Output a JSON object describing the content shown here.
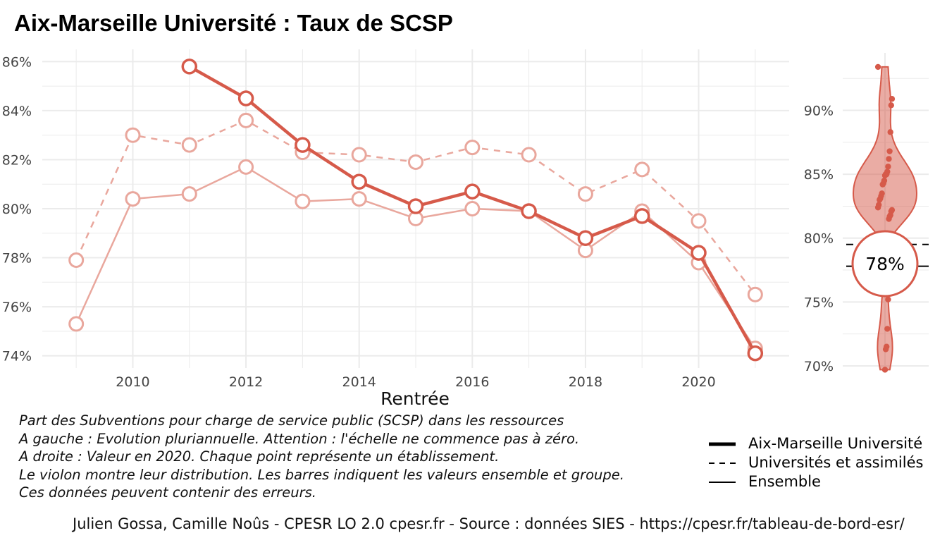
{
  "title": "Aix-Marseille Université  :  Taux de SCSP",
  "chart_data": [
    {
      "type": "line",
      "xlabel": "Rentrée",
      "ylabel": "",
      "x": [
        2009,
        2010,
        2011,
        2012,
        2013,
        2014,
        2015,
        2016,
        2017,
        2018,
        2019,
        2020,
        2021
      ],
      "xticks": [
        2010,
        2012,
        2014,
        2016,
        2018,
        2020
      ],
      "xlim": [
        2008.4,
        2021.6
      ],
      "ylim": [
        73.5,
        86.5
      ],
      "yticks": [
        74,
        76,
        78,
        80,
        82,
        84,
        86
      ],
      "ytick_labels": [
        "74%",
        "76%",
        "78%",
        "80%",
        "82%",
        "84%",
        "86%"
      ],
      "series": [
        {
          "name": "Aix-Marseille Université",
          "style": "solid-thick",
          "values": [
            null,
            null,
            85.8,
            84.5,
            82.6,
            81.1,
            80.1,
            80.7,
            79.9,
            78.8,
            79.7,
            78.2,
            74.1
          ]
        },
        {
          "name": "Universités et assimilés",
          "style": "dashed",
          "values": [
            77.9,
            83.0,
            82.6,
            83.6,
            82.3,
            82.2,
            81.9,
            82.5,
            82.2,
            80.6,
            81.6,
            79.5,
            76.5
          ]
        },
        {
          "name": "Ensemble",
          "style": "solid-thin",
          "values": [
            75.3,
            80.4,
            80.6,
            81.7,
            80.3,
            80.4,
            79.6,
            80.0,
            79.9,
            78.3,
            79.9,
            77.8,
            74.3
          ]
        }
      ],
      "grid": true
    },
    {
      "type": "violin",
      "ylim": [
        69.5,
        94.5
      ],
      "yticks": [
        70,
        75,
        80,
        85,
        90
      ],
      "ytick_labels": [
        "70%",
        "75%",
        "80%",
        "85%",
        "90%"
      ],
      "points": [
        93.4,
        90.9,
        90.4,
        88.3,
        86.8,
        86.2,
        85.6,
        85.2,
        85.0,
        85.0,
        84.9,
        84.5,
        84.3,
        84.2,
        83.5,
        83.3,
        83.1,
        83.0,
        82.6,
        82.4,
        82.2,
        82.1,
        81.8,
        81.7,
        81.5,
        75.2,
        72.9,
        71.5,
        71.3,
        69.7
      ],
      "value": 78.0,
      "value_label": "78%",
      "bar_universites": 79.5,
      "bar_ensemble": 77.8
    }
  ],
  "caption": [
    "Part des Subventions pour charge de service public (SCSP) dans les ressources",
    "A gauche : Evolution pluriannuelle. Attention : l'échelle ne commence pas à zéro.",
    "A droite : Valeur en 2020. Chaque point représente un établissement.",
    "Le violon montre leur distribution. Les barres indiquent les valeurs ensemble et groupe.",
    "Ces données peuvent contenir des erreurs."
  ],
  "legend": [
    {
      "label": "Aix-Marseille Université",
      "style": "thick"
    },
    {
      "label": "Universités et assimilés",
      "style": "dashed"
    },
    {
      "label": "Ensemble",
      "style": "thin"
    }
  ],
  "credit": "Julien Gossa, Camille Noûs - CPESR LO 2.0 cpesr.fr - Source : données SIES - https://cpesr.fr/tableau-de-bord-esr/",
  "colors": {
    "accent": "#d65a4a",
    "light": "#e9a79d",
    "grid": "#ebebeb",
    "text": "#444444"
  }
}
